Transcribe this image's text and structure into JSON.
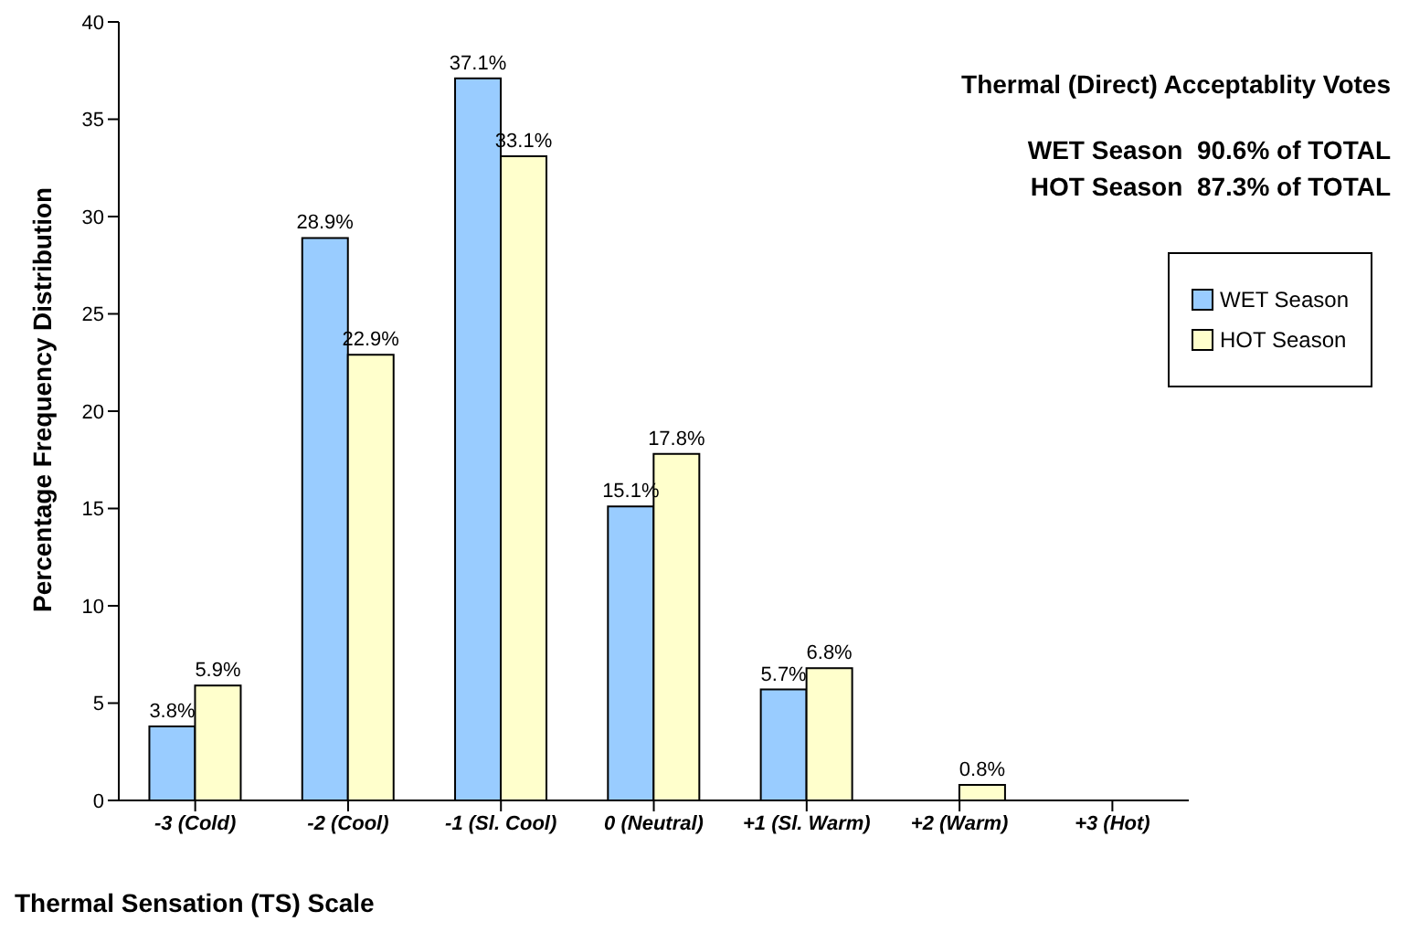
{
  "chart_data": {
    "type": "bar",
    "xlabel": "Thermal Sensation (TS) Scale",
    "ylabel": "Percentage Frequency Distribution",
    "categories": [
      "-3 (Cold)",
      "-2 (Cool)",
      "-1 (Sl. Cool)",
      "0 (Neutral)",
      "+1 (Sl. Warm)",
      "+2 (Warm)",
      "+3 (Hot)"
    ],
    "series": [
      {
        "name": "WET Season",
        "color": "#99ccff",
        "values": [
          3.8,
          28.9,
          37.1,
          15.1,
          5.7,
          null,
          null
        ],
        "value_labels": [
          "3.8%",
          "28.9%",
          "37.1%",
          "15.1%",
          "5.7%",
          null,
          null
        ]
      },
      {
        "name": "HOT Season",
        "color": "#ffffcc",
        "values": [
          5.9,
          22.9,
          33.1,
          17.8,
          6.8,
          0.8,
          null
        ],
        "value_labels": [
          "5.9%",
          "22.9%",
          "33.1%",
          "17.8%",
          "6.8%",
          "0.8%",
          null
        ]
      }
    ],
    "ylim": [
      0,
      40
    ],
    "yticks": [
      0,
      5,
      10,
      15,
      20,
      25,
      30,
      35,
      40
    ],
    "grid": false,
    "legend": "top right",
    "annotations": [
      "Thermal (Direct) Acceptablity Votes",
      "WET Season  90.6% of TOTAL",
      "HOT Season  87.3% of TOTAL"
    ]
  }
}
